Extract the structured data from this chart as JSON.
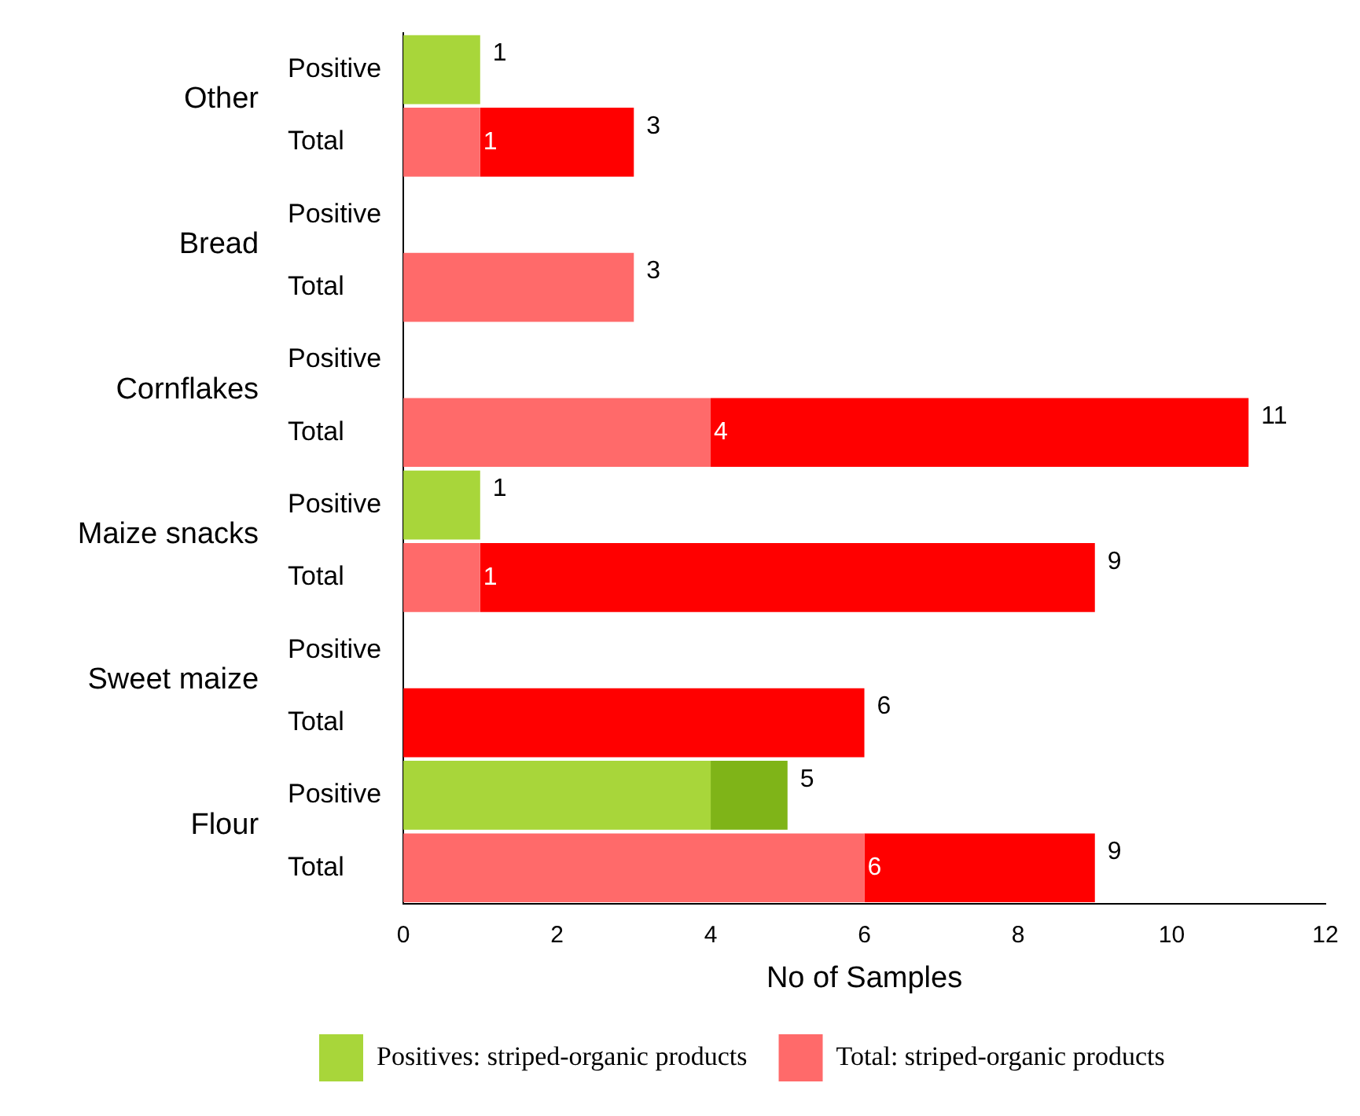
{
  "chart_data": {
    "type": "bar",
    "orientation": "horizontal",
    "stacked": true,
    "categories": [
      "Positive",
      "Total",
      "Positive",
      "Total",
      "Positive",
      "Total",
      "Positive",
      "Total",
      "Positive",
      "Total",
      "Positive",
      "Total"
    ],
    "series": [
      {
        "name": "Positives: striped-organic products",
        "color": "#a8d63a",
        "values": [
          1,
          null,
          null,
          null,
          null,
          null,
          1,
          null,
          null,
          null,
          4,
          null
        ]
      },
      {
        "color": "#7fb418",
        "values": [
          null,
          null,
          null,
          null,
          null,
          null,
          null,
          null,
          null,
          null,
          1,
          null
        ]
      },
      {
        "name": "Total: striped-organic products",
        "color": "#ff6a6a",
        "values": [
          null,
          1,
          null,
          3,
          null,
          4,
          null,
          1,
          null,
          null,
          null,
          6
        ],
        "value_labels": [
          null,
          "1",
          null,
          null,
          null,
          "4",
          null,
          "1",
          null,
          null,
          null,
          "6"
        ]
      },
      {
        "color": "#ff0000",
        "values": [
          null,
          2,
          null,
          null,
          null,
          7,
          null,
          8,
          null,
          6,
          null,
          3
        ]
      }
    ],
    "totals": [
      "1",
      "3",
      null,
      "3",
      null,
      "11",
      "1",
      "9",
      null,
      "6",
      "5",
      "9"
    ],
    "annotations": [
      "Other",
      "Bread",
      "Cornflakes",
      "Maize snacks",
      "Sweet maize",
      "Flour"
    ],
    "xlabel": "No of Samples",
    "xlim": [
      0,
      12
    ],
    "xticks": [
      0,
      2,
      4,
      6,
      8,
      10,
      12
    ],
    "grid": false,
    "legend": "bottom"
  }
}
